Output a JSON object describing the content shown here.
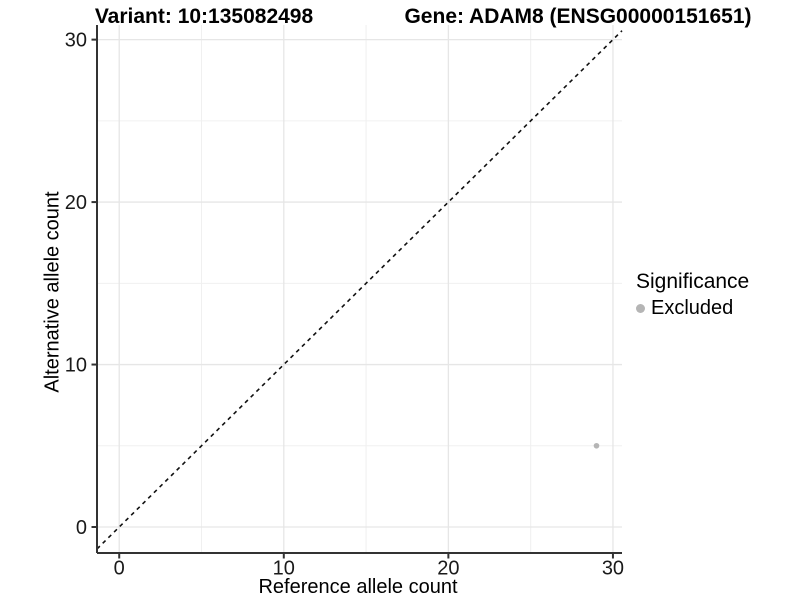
{
  "chart_data": {
    "type": "scatter",
    "title_left": "Variant: 10:135082498",
    "title_right": "Gene: ADAM8 (ENSG00000151651)",
    "xlabel": "Reference allele count",
    "ylabel": "Alternative allele count",
    "x_ticks": [
      0,
      10,
      20,
      30
    ],
    "y_ticks": [
      0,
      10,
      20,
      30
    ],
    "x_minor_ticks": [
      5,
      15,
      25
    ],
    "y_minor_ticks": [
      5,
      15,
      25
    ],
    "xlim": [
      -1.35,
      30.55
    ],
    "ylim": [
      -1.6,
      30.9
    ],
    "grid": true,
    "legend_position": "right",
    "ref_line": {
      "slope": 1,
      "intercept": 0,
      "style": "dashed"
    },
    "points": [
      {
        "x": 29,
        "y": 5,
        "significance": "Excluded"
      }
    ],
    "legend": {
      "title": "Significance",
      "items": [
        {
          "label": "Excluded",
          "color": "#b5b5b5",
          "marker": "circle-icon"
        }
      ]
    },
    "colors": {
      "background": "#ffffff",
      "grid_major": "#e6e6e6",
      "grid_minor": "#f0f0f0",
      "axis": "#333333",
      "tick_text": "#1a1a1a",
      "ref_line": "#111111",
      "excluded": "#b5b5b5"
    }
  }
}
